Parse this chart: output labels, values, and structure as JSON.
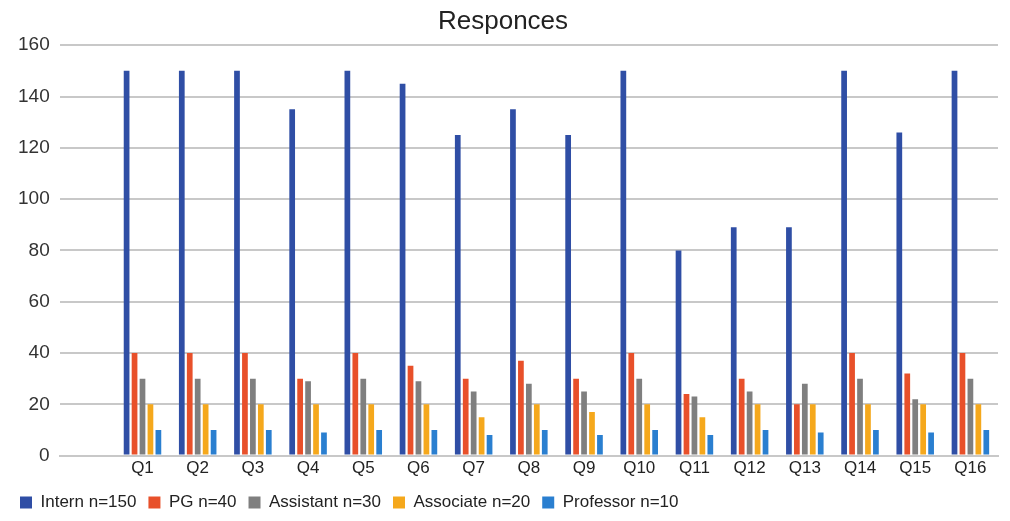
{
  "chart_data": {
    "type": "bar",
    "title": "Responces",
    "categories": [
      null,
      "Q1",
      "Q2",
      "Q3",
      "Q4",
      "Q5",
      "Q6",
      "Q7",
      "Q8",
      "Q9",
      "Q10",
      "Q11",
      "Q12",
      "Q13",
      "Q14",
      "Q15",
      "Q16"
    ],
    "series": [
      {
        "name": "Intern n=150",
        "color": "#2f4ea5",
        "values": [
          null,
          150,
          150,
          150,
          135,
          150,
          145,
          125,
          135,
          125,
          150,
          80,
          89,
          89,
          150,
          126,
          150
        ]
      },
      {
        "name": "PG n=40",
        "color": "#e8502a",
        "values": [
          null,
          40,
          40,
          40,
          30,
          40,
          35,
          30,
          37,
          30,
          40,
          24,
          30,
          20,
          40,
          32,
          40
        ]
      },
      {
        "name": "Assistant n=30",
        "color": "#7f7f7f",
        "values": [
          null,
          30,
          30,
          30,
          29,
          30,
          29,
          25,
          28,
          25,
          30,
          23,
          25,
          28,
          30,
          22,
          30
        ]
      },
      {
        "name": "Associate n=20",
        "color": "#f5a81c",
        "values": [
          null,
          20,
          20,
          20,
          20,
          20,
          20,
          15,
          20,
          17,
          20,
          15,
          20,
          20,
          20,
          20,
          20
        ]
      },
      {
        "name": "Professor n=10",
        "color": "#2a7fd0",
        "values": [
          null,
          10,
          10,
          10,
          9,
          10,
          10,
          8,
          10,
          8,
          10,
          8,
          10,
          9,
          10,
          9,
          10
        ]
      }
    ],
    "ylim": [
      0,
      160
    ],
    "yticks": [
      0,
      20,
      40,
      60,
      80,
      100,
      120,
      140,
      160
    ],
    "grid": "y",
    "legend": "bottom left"
  }
}
